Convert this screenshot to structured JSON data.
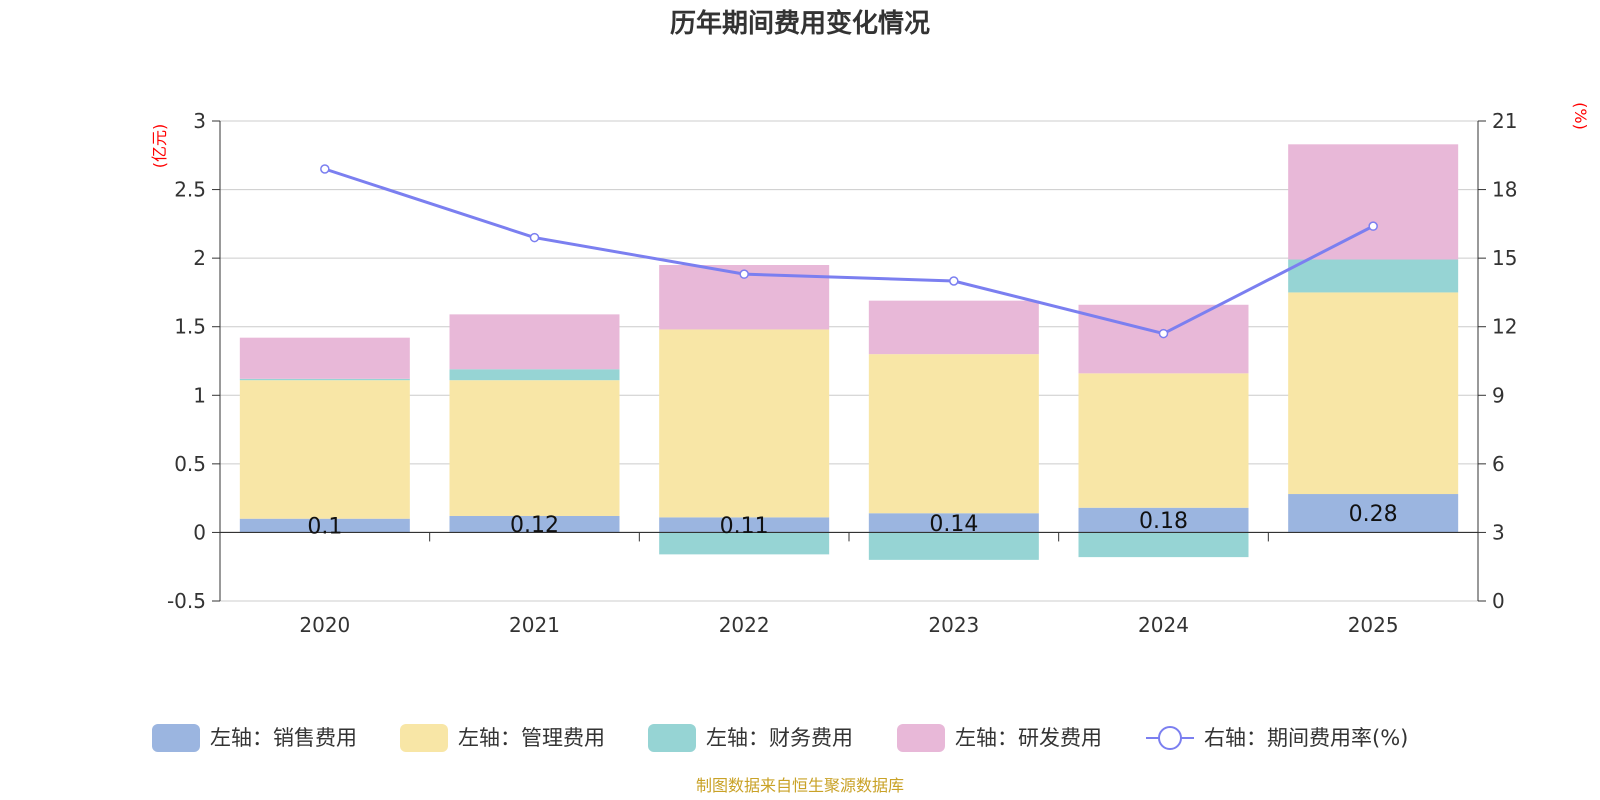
{
  "chart_data": {
    "type": "bar",
    "title": "历年期间费用变化情况",
    "categories": [
      "2020",
      "2021",
      "2022",
      "2023",
      "2024",
      "2025"
    ],
    "left_axis": {
      "unit": "(亿元)",
      "ylim": [
        -0.5,
        3
      ],
      "ticks": [
        "-0.5",
        "0",
        "0.5",
        "1",
        "1.5",
        "2",
        "2.5",
        "3"
      ]
    },
    "right_axis": {
      "unit": "(%)",
      "ylim": [
        0,
        21
      ],
      "ticks": [
        "0",
        "3",
        "6",
        "9",
        "12",
        "15",
        "18",
        "21"
      ]
    },
    "series": [
      {
        "name": "左轴：销售费用",
        "type": "bar",
        "axis": "left",
        "color": "#9bb5e0",
        "values": [
          0.1,
          0.12,
          0.11,
          0.14,
          0.18,
          0.28
        ],
        "labels": [
          "0.1",
          "0.12",
          "0.11",
          "0.14",
          "0.18",
          "0.28"
        ]
      },
      {
        "name": "左轴：管理费用",
        "type": "bar",
        "axis": "left",
        "color": "#f8e6a6",
        "values": [
          1.01,
          0.99,
          1.37,
          1.16,
          0.98,
          1.47
        ]
      },
      {
        "name": "左轴：财务费用",
        "type": "bar",
        "axis": "left",
        "color": "#96d4d4",
        "values": [
          0.01,
          0.08,
          -0.16,
          -0.2,
          -0.18,
          0.24
        ]
      },
      {
        "name": "左轴：研发费用",
        "type": "bar",
        "axis": "left",
        "color": "#e8b8d8",
        "values": [
          0.3,
          0.4,
          0.47,
          0.39,
          0.5,
          0.84
        ]
      },
      {
        "name": "右轴：期间费用率(%)",
        "type": "line",
        "axis": "right",
        "color": "#7b7ff0",
        "values": [
          18.9,
          15.9,
          14.3,
          14.0,
          11.7,
          16.4
        ]
      }
    ],
    "legend_position": "bottom"
  },
  "source_note": "制图数据来自恒生聚源数据库"
}
